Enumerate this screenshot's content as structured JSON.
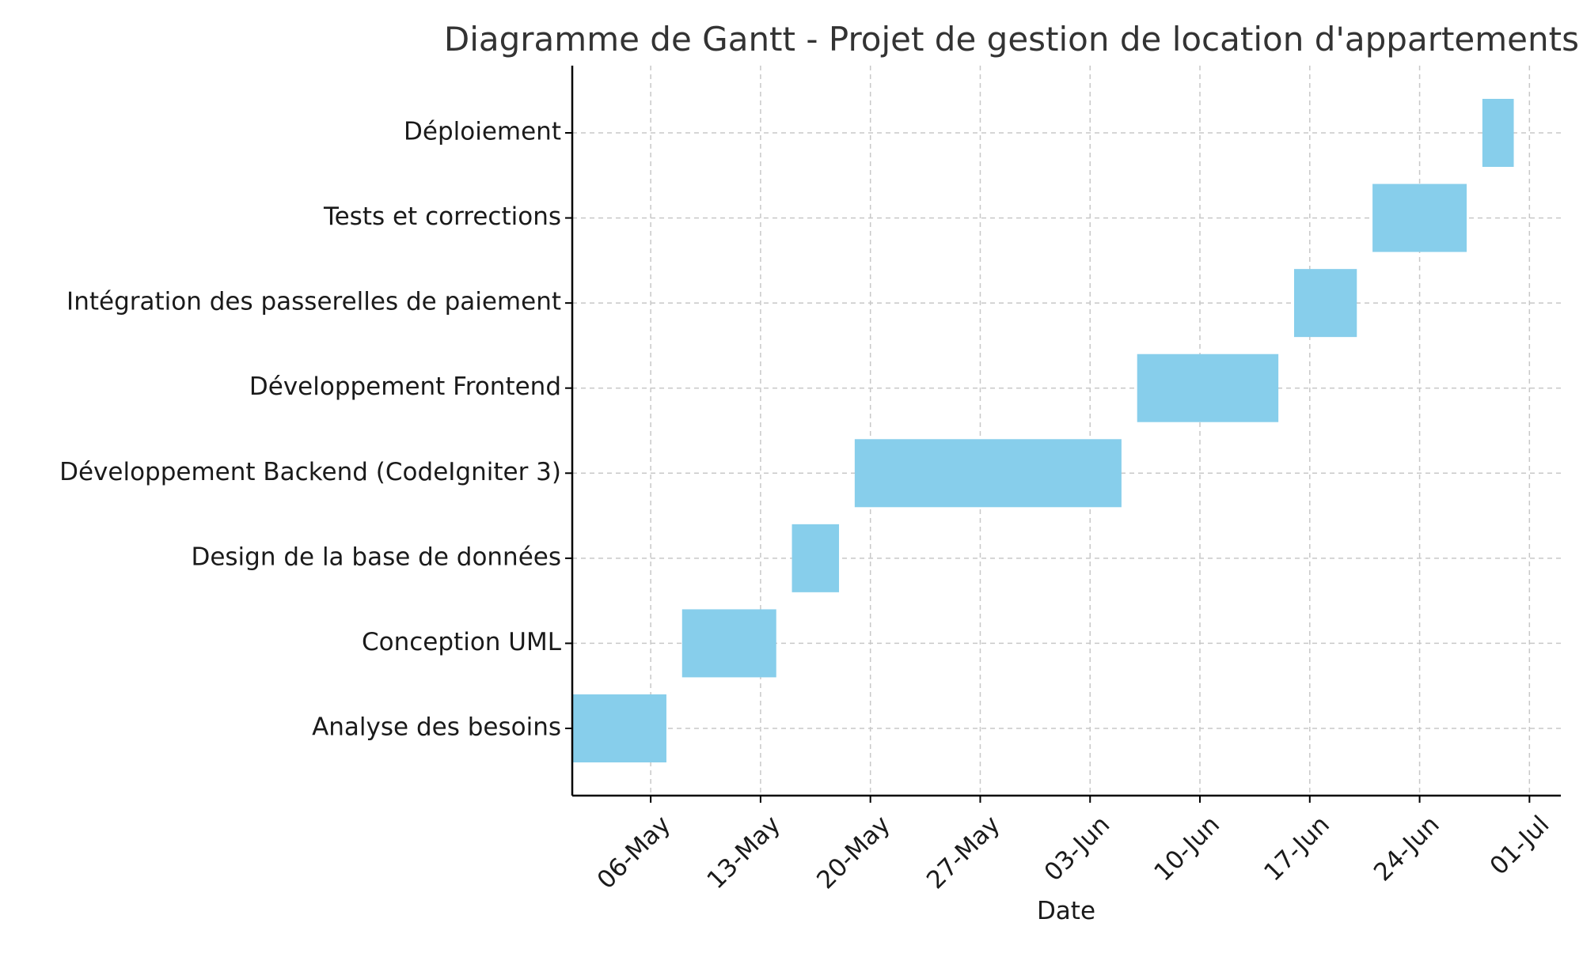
{
  "chart_data": {
    "type": "bar",
    "orientation": "horizontal",
    "subtype": "gantt",
    "title": "Diagramme de Gantt - Projet de gestion de location d'appartements",
    "xlabel": "Date",
    "ylabel": "",
    "xlim": [
      "2024-05-01",
      "2024-07-03"
    ],
    "grid": true,
    "bar_color": "#87CEEB",
    "x_ticks": [
      {
        "date": "2024-05-06",
        "label": "06-May"
      },
      {
        "date": "2024-05-13",
        "label": "13-May"
      },
      {
        "date": "2024-05-20",
        "label": "20-May"
      },
      {
        "date": "2024-05-27",
        "label": "27-May"
      },
      {
        "date": "2024-06-03",
        "label": "03-Jun"
      },
      {
        "date": "2024-06-10",
        "label": "10-Jun"
      },
      {
        "date": "2024-06-17",
        "label": "17-Jun"
      },
      {
        "date": "2024-06-24",
        "label": "24-Jun"
      },
      {
        "date": "2024-07-01",
        "label": "01-Jul"
      }
    ],
    "tasks": [
      {
        "name": "Analyse des besoins",
        "start": "2024-05-01",
        "end": "2024-05-07"
      },
      {
        "name": "Conception UML",
        "start": "2024-05-08",
        "end": "2024-05-14"
      },
      {
        "name": "Design de la base de données",
        "start": "2024-05-15",
        "end": "2024-05-18"
      },
      {
        "name": "Développement Backend (CodeIgniter 3)",
        "start": "2024-05-19",
        "end": "2024-06-05"
      },
      {
        "name": "Développement Frontend",
        "start": "2024-06-06",
        "end": "2024-06-15"
      },
      {
        "name": "Intégration des passerelles de paiement",
        "start": "2024-06-16",
        "end": "2024-06-20"
      },
      {
        "name": "Tests et corrections",
        "start": "2024-06-21",
        "end": "2024-06-27"
      },
      {
        "name": "Déploiement",
        "start": "2024-06-28",
        "end": "2024-06-30"
      }
    ]
  }
}
